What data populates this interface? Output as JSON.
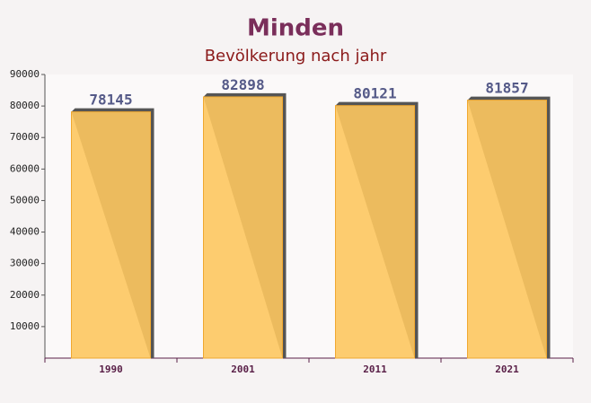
{
  "chart_data": {
    "type": "bar",
    "title": "Minden",
    "subtitle": "Bevölkerung nach jahr",
    "categories": [
      "1990",
      "2001",
      "2011",
      "2021"
    ],
    "values": [
      78145,
      82898,
      80121,
      81857
    ],
    "color": "#fdc65f",
    "ylim": [
      0,
      90000
    ],
    "yticks": [
      10000,
      20000,
      30000,
      40000,
      50000,
      60000,
      70000,
      80000,
      90000
    ]
  }
}
